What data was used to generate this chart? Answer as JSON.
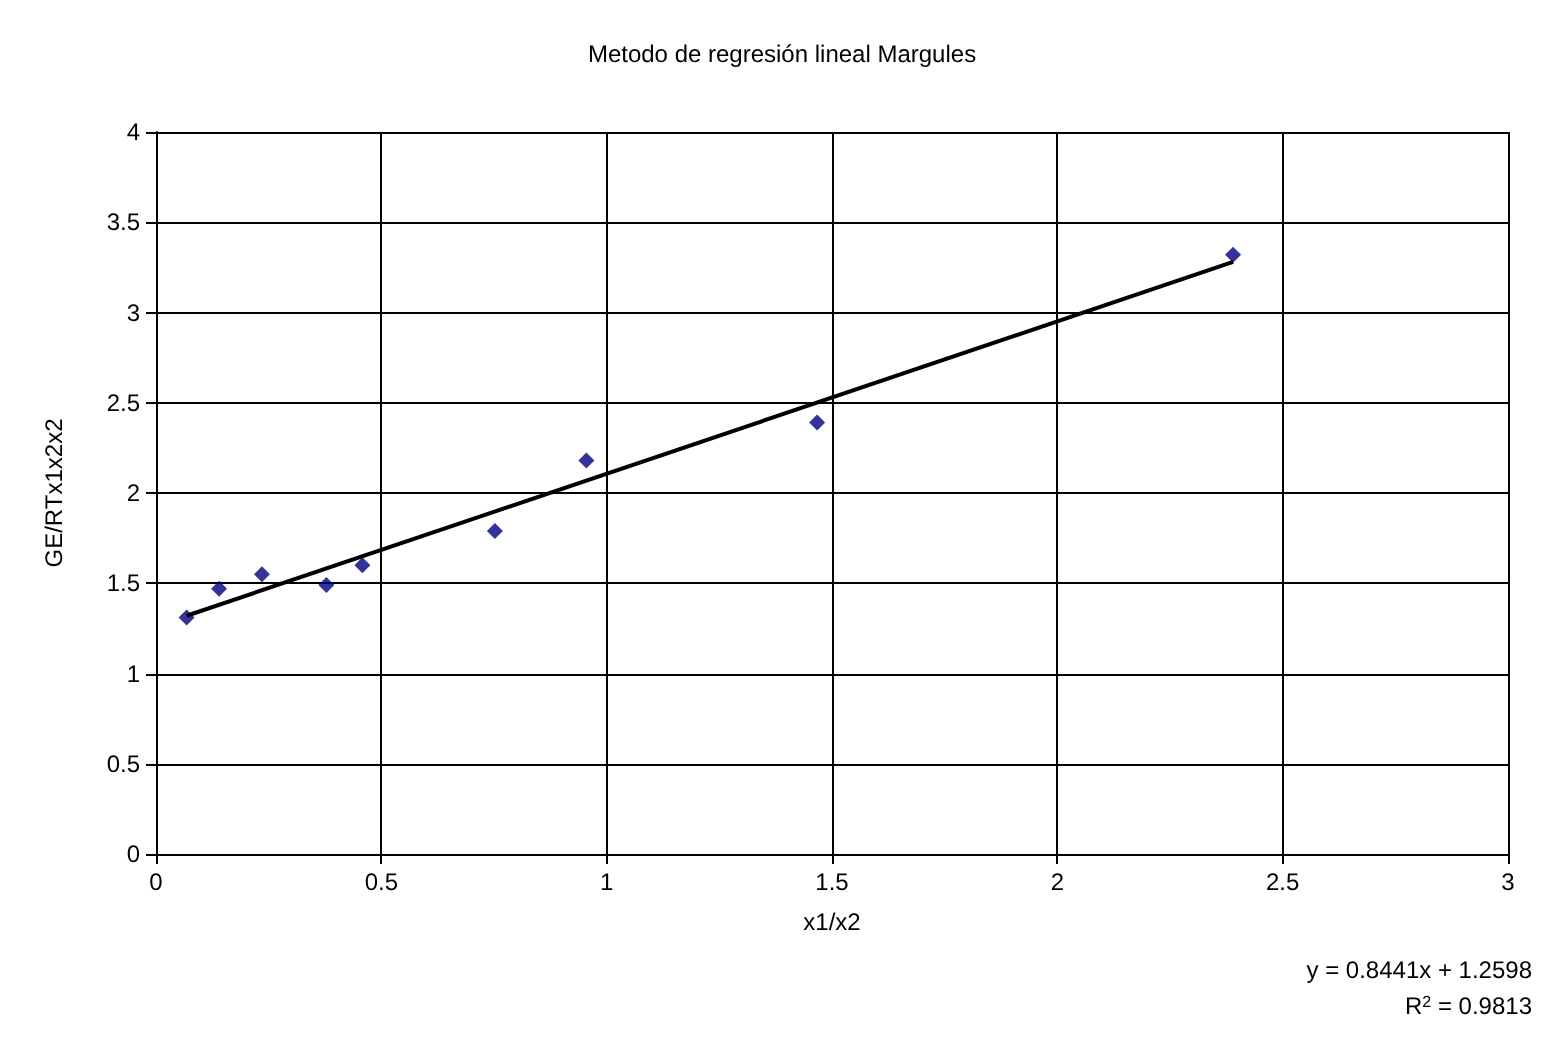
{
  "chart_data": {
    "type": "scatter",
    "title": "Metodo de regresión lineal Margules",
    "xlabel": "x1/x2",
    "ylabel": "GE/RTx1x2x2",
    "xlim": [
      0,
      3
    ],
    "xticks": [
      0,
      0.5,
      1,
      1.5,
      2,
      2.5,
      3
    ],
    "ylim": [
      0,
      4
    ],
    "yticks": [
      0,
      0.5,
      1,
      1.5,
      2,
      2.5,
      3,
      3.5,
      4
    ],
    "grid": true,
    "series": [
      {
        "marker": "diamond",
        "color": "#000080",
        "x": [
          0.068,
          0.14,
          0.235,
          0.378,
          0.458,
          0.752,
          0.955,
          1.467,
          2.39
        ],
        "values": [
          1.31,
          1.47,
          1.55,
          1.49,
          1.6,
          1.79,
          2.18,
          2.39,
          3.32
        ]
      },
      {
        "type": "line",
        "color": "#000000",
        "x": [
          0.068,
          2.39
        ],
        "values": [
          1.32,
          3.28
        ]
      }
    ],
    "annotations": [
      "y = 0.8441x + 1.2598",
      "R$^{2}$ = 0.9813"
    ]
  }
}
